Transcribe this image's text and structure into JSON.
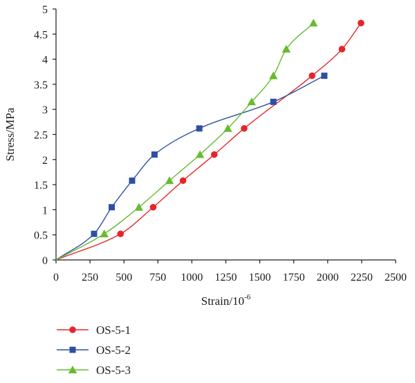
{
  "chart_data": {
    "type": "line",
    "title": "",
    "xlabel": "Strain/10",
    "xlabel_superscript": "-6",
    "ylabel": "Stress/MPa",
    "xlim": [
      0,
      2500
    ],
    "ylim": [
      0,
      5
    ],
    "xticks": [
      "0",
      "250",
      "500",
      "750",
      "1000",
      "1250",
      "1500",
      "1750",
      "2000",
      "2250",
      "2500"
    ],
    "yticks": [
      "0",
      "0.5",
      "1",
      "1.5",
      "2",
      "2.5",
      "3",
      "3.5",
      "4",
      "4.5",
      "5"
    ],
    "grid": false,
    "legend_position": "bottom-left",
    "series": [
      {
        "name": "OS-5-1",
        "color": "#e8242b",
        "marker": "circle",
        "x": [
          0,
          475,
          715,
          935,
          1165,
          1385,
          1885,
          2105,
          2245
        ],
        "y": [
          0,
          0.52,
          1.05,
          1.58,
          2.1,
          2.62,
          3.67,
          4.2,
          4.72
        ]
      },
      {
        "name": "OS-5-2",
        "color": "#2e4fa3",
        "marker": "square",
        "x": [
          0,
          280,
          410,
          560,
          725,
          1055,
          1600,
          1975
        ],
        "y": [
          0,
          0.52,
          1.05,
          1.58,
          2.1,
          2.62,
          3.15,
          3.67
        ]
      },
      {
        "name": "OS-5-3",
        "color": "#66bb2e",
        "marker": "triangle",
        "x": [
          0,
          355,
          610,
          835,
          1060,
          1265,
          1440,
          1600,
          1695,
          1895
        ],
        "y": [
          0,
          0.52,
          1.05,
          1.58,
          2.1,
          2.62,
          3.15,
          3.67,
          4.2,
          4.72
        ]
      }
    ]
  }
}
